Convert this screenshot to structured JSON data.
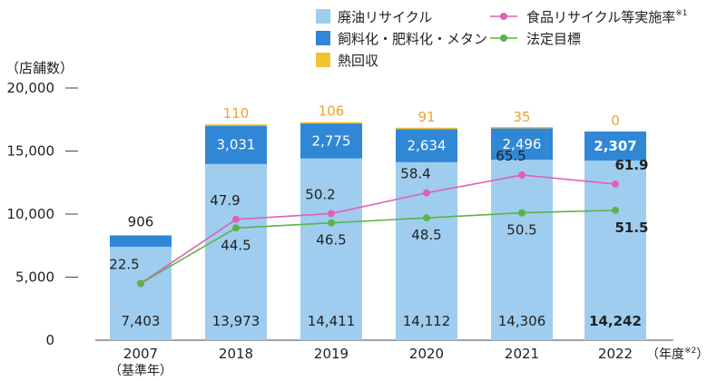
{
  "chart_data": {
    "type": "bar",
    "y_unit_label": "（店舗数）",
    "x_unit_label": "（年度",
    "x_unit_note": "※2",
    "x_unit_close": "）",
    "ylim": [
      0,
      20000
    ],
    "yticks": [
      0,
      5000,
      10000,
      15000,
      20000
    ],
    "ytick_labels": [
      "0",
      "5,000",
      "10,000",
      "15,000",
      "20,000"
    ],
    "categories": [
      "2007",
      "2018",
      "2019",
      "2020",
      "2021",
      "2022"
    ],
    "category_sublabels": [
      "（基準年）",
      "",
      "",
      "",
      "",
      ""
    ],
    "series": [
      {
        "name": "廃油リサイクル",
        "color": "#9fcdef",
        "values": [
          7403,
          13973,
          14411,
          14112,
          14306,
          14242
        ],
        "labels": [
          "7,403",
          "13,973",
          "14,411",
          "14,112",
          "14,306",
          "14,242"
        ]
      },
      {
        "name": "飼料化・肥料化・メタン",
        "color": "#2f87d6",
        "values": [
          906,
          3031,
          2775,
          2634,
          2496,
          2307
        ],
        "labels": [
          "906",
          "3,031",
          "2,775",
          "2,634",
          "2,496",
          "2,307"
        ]
      },
      {
        "name": "熱回収",
        "color": "#f2c230",
        "label_color": "#f0a030",
        "values": [
          0,
          110,
          106,
          91,
          35,
          0
        ],
        "labels": [
          "",
          "110",
          "106",
          "91",
          "35",
          "0"
        ]
      }
    ],
    "lines": [
      {
        "name": "食品リサイクル等実施率",
        "note": "※1",
        "color": "#e060b8",
        "values": [
          22.5,
          47.9,
          50.2,
          58.4,
          65.5,
          61.9
        ],
        "labels": [
          "22.5",
          "47.9",
          "50.2",
          "58.4",
          "65.5",
          "61.9"
        ]
      },
      {
        "name": "法定目標",
        "color": "#5ab545",
        "values": [
          22.5,
          44.5,
          46.5,
          48.5,
          50.5,
          51.5
        ],
        "labels": [
          "",
          "44.5",
          "46.5",
          "48.5",
          "50.5",
          "51.5"
        ]
      }
    ],
    "legend": "top-center",
    "last_category_emphasized": true
  }
}
